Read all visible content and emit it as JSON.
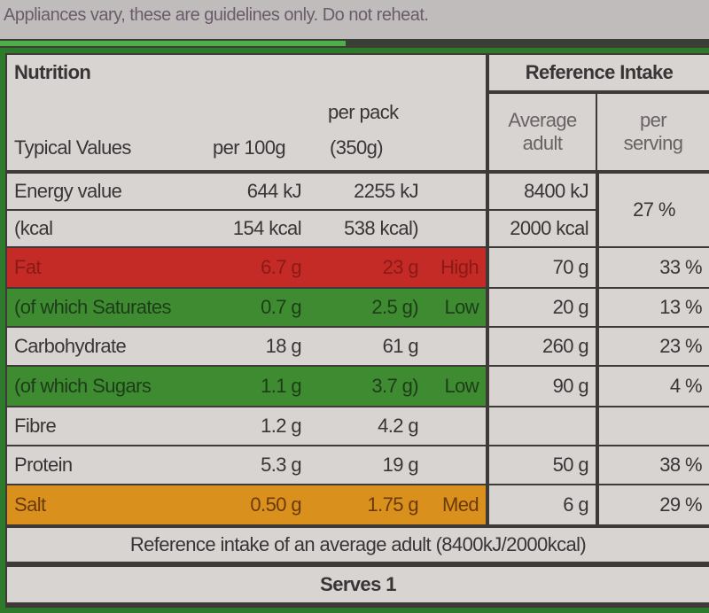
{
  "note": "Appliances vary, these are guidelines only. Do not reheat.",
  "header": {
    "title": "Nutrition",
    "ref_title": "Reference Intake",
    "typical": "Typical Values",
    "per100": "per 100g",
    "perpack_1": "per pack",
    "perpack_2": "(350g)",
    "avg_1": "Average",
    "avg_2": "adult",
    "serv_1": "per",
    "serv_2": "serving"
  },
  "rows": [
    {
      "label": "Energy value",
      "per100": "644 kJ",
      "perpack": "2255 kJ",
      "level": "",
      "ri": "8400 kJ",
      "pct": "27 %"
    },
    {
      "label": "(kcal",
      "per100": "154 kcal",
      "perpack": "538 kcal)",
      "level": "",
      "ri": "2000 kcal",
      "pct": ""
    },
    {
      "label": "Fat",
      "per100": "6.7 g",
      "perpack": "23 g",
      "level": "High",
      "ri": "70 g",
      "pct": "33 %",
      "color": "#c42a26"
    },
    {
      "label": "(of which Saturates",
      "per100": "0.7 g",
      "perpack": "2.5 g)",
      "level": "Low",
      "ri": "20 g",
      "pct": "13 %",
      "color": "#3e8b32"
    },
    {
      "label": "Carbohydrate",
      "per100": "18 g",
      "perpack": "61 g",
      "level": "",
      "ri": "260 g",
      "pct": "23 %"
    },
    {
      "label": "(of which Sugars",
      "per100": "1.1 g",
      "perpack": "3.7 g)",
      "level": "Low",
      "ri": "90 g",
      "pct": "4 %",
      "color": "#3e8b32"
    },
    {
      "label": "Fibre",
      "per100": "1.2 g",
      "perpack": "4.2 g",
      "level": "",
      "ri": "",
      "pct": ""
    },
    {
      "label": "Protein",
      "per100": "5.3 g",
      "perpack": "19 g",
      "level": "",
      "ri": "50 g",
      "pct": "38 %"
    },
    {
      "label": "Salt",
      "per100": "0.50 g",
      "perpack": "1.75 g",
      "level": "Med",
      "ri": "6 g",
      "pct": "29 %",
      "color": "#d9901c"
    }
  ],
  "footer": {
    "reference": "Reference intake of an average adult (8400kJ/2000kcal)",
    "serves": "Serves 1"
  }
}
